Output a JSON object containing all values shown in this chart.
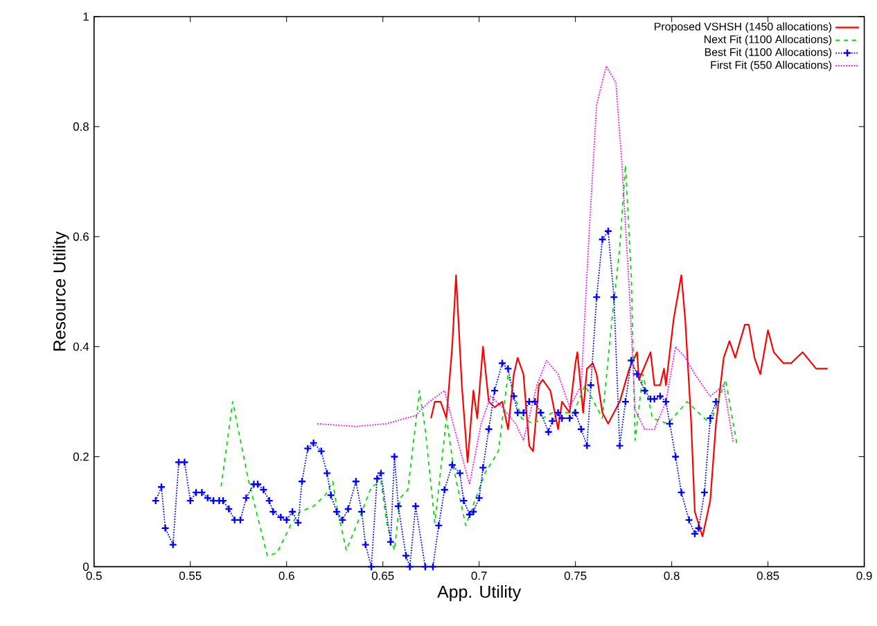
{
  "chart_data": {
    "type": "line",
    "xlabel": "App. Utility",
    "ylabel": "Resource Utility",
    "xlim": [
      0.5,
      0.9
    ],
    "ylim": [
      0,
      1
    ],
    "xticks": [
      0.5,
      0.55,
      0.6,
      0.65,
      0.7,
      0.75,
      0.8,
      0.85,
      0.9
    ],
    "yticks": [
      0,
      0.2,
      0.4,
      0.6,
      0.8,
      1
    ],
    "legend": "top right",
    "series": [
      {
        "name": "Proposed VSHSH (1450 allocations)",
        "color": "#ff0000",
        "line_style": "solid",
        "marker": "none",
        "x": [
          0.675,
          0.677,
          0.68,
          0.683,
          0.686,
          0.688,
          0.691,
          0.694,
          0.697,
          0.699,
          0.702,
          0.705,
          0.708,
          0.712,
          0.715,
          0.718,
          0.72,
          0.723,
          0.726,
          0.728,
          0.731,
          0.733,
          0.737,
          0.741,
          0.743,
          0.747,
          0.75,
          0.751,
          0.754,
          0.756,
          0.759,
          0.761,
          0.764,
          0.767,
          0.773,
          0.778,
          0.782,
          0.783,
          0.789,
          0.791,
          0.794,
          0.796,
          0.797,
          0.801,
          0.805,
          0.807,
          0.81,
          0.812,
          0.816,
          0.82,
          0.823,
          0.827,
          0.83,
          0.833,
          0.838,
          0.84,
          0.843,
          0.846,
          0.85,
          0.853,
          0.858,
          0.862,
          0.868,
          0.875,
          0.881
        ],
        "values": [
          0.27,
          0.3,
          0.3,
          0.27,
          0.4,
          0.53,
          0.33,
          0.19,
          0.32,
          0.27,
          0.4,
          0.3,
          0.29,
          0.3,
          0.25,
          0.35,
          0.38,
          0.35,
          0.22,
          0.21,
          0.33,
          0.34,
          0.32,
          0.25,
          0.3,
          0.28,
          0.37,
          0.39,
          0.28,
          0.36,
          0.37,
          0.35,
          0.28,
          0.26,
          0.3,
          0.36,
          0.39,
          0.34,
          0.39,
          0.33,
          0.33,
          0.36,
          0.33,
          0.45,
          0.53,
          0.45,
          0.27,
          0.1,
          0.055,
          0.12,
          0.26,
          0.38,
          0.41,
          0.38,
          0.44,
          0.44,
          0.38,
          0.35,
          0.43,
          0.39,
          0.37,
          0.37,
          0.39,
          0.36,
          0.36
        ]
      },
      {
        "name": "Next Fit (1100 Allocations)",
        "color": "#00dd00",
        "line_style": "dashed",
        "marker": "none",
        "x": [
          0.566,
          0.572,
          0.58,
          0.59,
          0.595,
          0.602,
          0.607,
          0.614,
          0.62,
          0.624,
          0.626,
          0.631,
          0.638,
          0.644,
          0.649,
          0.652,
          0.656,
          0.659,
          0.663,
          0.669,
          0.672,
          0.677,
          0.683,
          0.687,
          0.693,
          0.703,
          0.71,
          0.715,
          0.722,
          0.728,
          0.738,
          0.749,
          0.755,
          0.764,
          0.769,
          0.773,
          0.776,
          0.779,
          0.781,
          0.785,
          0.79,
          0.798,
          0.808,
          0.82,
          0.828,
          0.834
        ],
        "values": [
          0.146,
          0.3,
          0.16,
          0.02,
          0.025,
          0.075,
          0.1,
          0.11,
          0.13,
          0.155,
          0.11,
          0.03,
          0.09,
          0.145,
          0.155,
          0.08,
          0.03,
          0.125,
          0.14,
          0.32,
          0.25,
          0.08,
          0.27,
          0.175,
          0.075,
          0.17,
          0.21,
          0.35,
          0.27,
          0.26,
          0.28,
          0.28,
          0.33,
          0.27,
          0.45,
          0.58,
          0.73,
          0.53,
          0.23,
          0.35,
          0.27,
          0.26,
          0.3,
          0.26,
          0.34,
          0.22
        ]
      },
      {
        "name": "Best Fit (1100 Allocations)",
        "color": "#0000ff",
        "line_style": "dotted",
        "marker": "cross",
        "x": [
          0.532,
          0.535,
          0.537,
          0.541,
          0.544,
          0.547,
          0.55,
          0.553,
          0.556,
          0.559,
          0.562,
          0.565,
          0.567,
          0.57,
          0.573,
          0.576,
          0.579,
          0.583,
          0.585,
          0.588,
          0.591,
          0.593,
          0.597,
          0.6,
          0.603,
          0.606,
          0.608,
          0.611,
          0.614,
          0.618,
          0.621,
          0.623,
          0.626,
          0.629,
          0.632,
          0.636,
          0.639,
          0.641,
          0.644,
          0.647,
          0.649,
          0.654,
          0.656,
          0.658,
          0.662,
          0.664,
          0.667,
          0.672,
          0.676,
          0.679,
          0.682,
          0.686,
          0.69,
          0.692,
          0.695,
          0.697,
          0.7,
          0.702,
          0.705,
          0.708,
          0.712,
          0.715,
          0.718,
          0.72,
          0.723,
          0.726,
          0.729,
          0.732,
          0.736,
          0.738,
          0.741,
          0.743,
          0.747,
          0.75,
          0.753,
          0.756,
          0.758,
          0.761,
          0.764,
          0.767,
          0.77,
          0.773,
          0.776,
          0.779,
          0.782,
          0.786,
          0.789,
          0.791,
          0.794,
          0.797,
          0.799,
          0.802,
          0.805,
          0.809,
          0.812,
          0.814,
          0.817,
          0.82,
          0.823
        ],
        "values": [
          0.12,
          0.145,
          0.07,
          0.04,
          0.19,
          0.19,
          0.12,
          0.135,
          0.135,
          0.125,
          0.12,
          0.12,
          0.12,
          0.105,
          0.085,
          0.085,
          0.125,
          0.15,
          0.15,
          0.14,
          0.12,
          0.1,
          0.09,
          0.085,
          0.1,
          0.08,
          0.155,
          0.215,
          0.225,
          0.21,
          0.17,
          0.13,
          0.1,
          0.085,
          0.105,
          0.155,
          0.1,
          0.04,
          0.0,
          0.16,
          0.17,
          0.045,
          0.2,
          0.11,
          0.02,
          0.0,
          0.11,
          0.0,
          0.0,
          0.075,
          0.14,
          0.185,
          0.17,
          0.12,
          0.095,
          0.1,
          0.125,
          0.18,
          0.25,
          0.32,
          0.37,
          0.36,
          0.31,
          0.28,
          0.28,
          0.3,
          0.3,
          0.28,
          0.245,
          0.265,
          0.28,
          0.27,
          0.27,
          0.28,
          0.25,
          0.22,
          0.33,
          0.49,
          0.595,
          0.61,
          0.49,
          0.22,
          0.3,
          0.375,
          0.35,
          0.32,
          0.305,
          0.305,
          0.31,
          0.3,
          0.26,
          0.2,
          0.135,
          0.085,
          0.06,
          0.07,
          0.135,
          0.27,
          0.3
        ]
      },
      {
        "name": "First Fit (550 Allocations)",
        "color": "#ff00ff",
        "line_style": "dotted",
        "marker": "none",
        "x": [
          0.616,
          0.636,
          0.652,
          0.662,
          0.667,
          0.674,
          0.682,
          0.688,
          0.695,
          0.701,
          0.706,
          0.712,
          0.719,
          0.723,
          0.73,
          0.735,
          0.741,
          0.747,
          0.753,
          0.757,
          0.761,
          0.766,
          0.771,
          0.774,
          0.778,
          0.781,
          0.786,
          0.791,
          0.797,
          0.802,
          0.807,
          0.812,
          0.82,
          0.827,
          0.832
        ],
        "values": [
          0.26,
          0.255,
          0.26,
          0.27,
          0.275,
          0.3,
          0.32,
          0.24,
          0.15,
          0.26,
          0.31,
          0.29,
          0.26,
          0.23,
          0.33,
          0.375,
          0.35,
          0.29,
          0.33,
          0.6,
          0.84,
          0.91,
          0.88,
          0.74,
          0.5,
          0.285,
          0.25,
          0.25,
          0.3,
          0.4,
          0.38,
          0.35,
          0.31,
          0.33,
          0.225
        ]
      }
    ]
  }
}
